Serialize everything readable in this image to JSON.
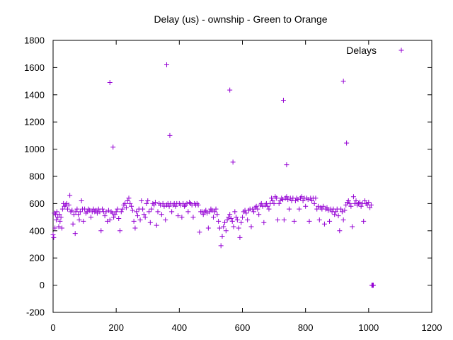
{
  "chart_data": {
    "type": "scatter",
    "title": "Delay (us) - ownship - Green to Orange",
    "xlabel": "",
    "ylabel": "",
    "xlim": [
      0,
      1200
    ],
    "ylim": [
      -200,
      1800
    ],
    "xticks": [
      0,
      200,
      400,
      600,
      800,
      1000,
      1200
    ],
    "yticks": [
      -200,
      0,
      200,
      400,
      600,
      800,
      1000,
      1200,
      1400,
      1600,
      1800
    ],
    "grid": false,
    "legend_position": "top-right",
    "marker": "plus",
    "series": [
      {
        "name": "Delays",
        "color": "#9400d3",
        "points": [
          [
            180,
            1490
          ],
          [
            190,
            1015
          ],
          [
            360,
            1620
          ],
          [
            370,
            1100
          ],
          [
            560,
            1435
          ],
          [
            570,
            905
          ],
          [
            730,
            1360
          ],
          [
            740,
            885
          ],
          [
            920,
            1500
          ],
          [
            930,
            1045
          ],
          [
            0,
            370
          ],
          [
            2,
            350
          ],
          [
            4,
            530
          ],
          [
            6,
            420
          ],
          [
            8,
            520
          ],
          [
            10,
            480
          ],
          [
            12,
            540
          ],
          [
            15,
            500
          ],
          [
            18,
            430
          ],
          [
            20,
            520
          ],
          [
            22,
            470
          ],
          [
            25,
            500
          ],
          [
            28,
            420
          ],
          [
            30,
            560
          ],
          [
            33,
            600
          ],
          [
            36,
            580
          ],
          [
            40,
            590
          ],
          [
            43,
            600
          ],
          [
            46,
            560
          ],
          [
            50,
            590
          ],
          [
            53,
            660
          ],
          [
            56,
            540
          ],
          [
            60,
            550
          ],
          [
            63,
            450
          ],
          [
            66,
            520
          ],
          [
            70,
            380
          ],
          [
            72,
            540
          ],
          [
            76,
            560
          ],
          [
            80,
            520
          ],
          [
            83,
            480
          ],
          [
            86,
            540
          ],
          [
            90,
            620
          ],
          [
            93,
            560
          ],
          [
            96,
            470
          ],
          [
            100,
            560
          ],
          [
            104,
            530
          ],
          [
            108,
            540
          ],
          [
            112,
            560
          ],
          [
            116,
            550
          ],
          [
            120,
            500
          ],
          [
            124,
            540
          ],
          [
            128,
            560
          ],
          [
            132,
            540
          ],
          [
            136,
            550
          ],
          [
            140,
            530
          ],
          [
            144,
            560
          ],
          [
            148,
            540
          ],
          [
            152,
            400
          ],
          [
            156,
            560
          ],
          [
            160,
            540
          ],
          [
            164,
            510
          ],
          [
            168,
            540
          ],
          [
            172,
            470
          ],
          [
            176,
            550
          ],
          [
            180,
            480
          ],
          [
            184,
            540
          ],
          [
            188,
            530
          ],
          [
            192,
            500
          ],
          [
            196,
            520
          ],
          [
            200,
            540
          ],
          [
            204,
            560
          ],
          [
            208,
            490
          ],
          [
            212,
            400
          ],
          [
            216,
            540
          ],
          [
            220,
            560
          ],
          [
            224,
            590
          ],
          [
            228,
            600
          ],
          [
            232,
            570
          ],
          [
            236,
            620
          ],
          [
            240,
            640
          ],
          [
            244,
            600
          ],
          [
            248,
            580
          ],
          [
            252,
            550
          ],
          [
            256,
            470
          ],
          [
            260,
            420
          ],
          [
            264,
            540
          ],
          [
            268,
            510
          ],
          [
            272,
            560
          ],
          [
            276,
            480
          ],
          [
            280,
            620
          ],
          [
            284,
            560
          ],
          [
            288,
            520
          ],
          [
            292,
            500
          ],
          [
            296,
            600
          ],
          [
            300,
            620
          ],
          [
            304,
            540
          ],
          [
            308,
            460
          ],
          [
            312,
            560
          ],
          [
            316,
            600
          ],
          [
            320,
            590
          ],
          [
            324,
            610
          ],
          [
            328,
            440
          ],
          [
            332,
            540
          ],
          [
            336,
            600
          ],
          [
            340,
            590
          ],
          [
            344,
            520
          ],
          [
            348,
            600
          ],
          [
            352,
            580
          ],
          [
            356,
            480
          ],
          [
            360,
            590
          ],
          [
            364,
            600
          ],
          [
            368,
            580
          ],
          [
            372,
            600
          ],
          [
            376,
            540
          ],
          [
            380,
            590
          ],
          [
            384,
            600
          ],
          [
            388,
            580
          ],
          [
            392,
            600
          ],
          [
            396,
            510
          ],
          [
            400,
            600
          ],
          [
            404,
            590
          ],
          [
            408,
            500
          ],
          [
            412,
            600
          ],
          [
            416,
            580
          ],
          [
            420,
            590
          ],
          [
            424,
            600
          ],
          [
            428,
            540
          ],
          [
            432,
            610
          ],
          [
            436,
            600
          ],
          [
            440,
            590
          ],
          [
            444,
            500
          ],
          [
            448,
            600
          ],
          [
            452,
            590
          ],
          [
            456,
            600
          ],
          [
            460,
            590
          ],
          [
            464,
            390
          ],
          [
            468,
            540
          ],
          [
            472,
            540
          ],
          [
            476,
            520
          ],
          [
            480,
            540
          ],
          [
            484,
            550
          ],
          [
            488,
            530
          ],
          [
            492,
            420
          ],
          [
            496,
            540
          ],
          [
            500,
            560
          ],
          [
            504,
            550
          ],
          [
            508,
            500
          ],
          [
            512,
            540
          ],
          [
            516,
            560
          ],
          [
            520,
            520
          ],
          [
            524,
            470
          ],
          [
            528,
            420
          ],
          [
            532,
            290
          ],
          [
            536,
            360
          ],
          [
            540,
            430
          ],
          [
            544,
            460
          ],
          [
            548,
            400
          ],
          [
            552,
            480
          ],
          [
            556,
            500
          ],
          [
            560,
            520
          ],
          [
            564,
            490
          ],
          [
            568,
            470
          ],
          [
            572,
            430
          ],
          [
            576,
            540
          ],
          [
            580,
            500
          ],
          [
            584,
            480
          ],
          [
            588,
            420
          ],
          [
            592,
            350
          ],
          [
            596,
            460
          ],
          [
            600,
            500
          ],
          [
            604,
            540
          ],
          [
            608,
            550
          ],
          [
            612,
            530
          ],
          [
            616,
            480
          ],
          [
            620,
            550
          ],
          [
            624,
            560
          ],
          [
            628,
            430
          ],
          [
            632,
            560
          ],
          [
            636,
            540
          ],
          [
            640,
            570
          ],
          [
            644,
            580
          ],
          [
            648,
            560
          ],
          [
            652,
            520
          ],
          [
            656,
            590
          ],
          [
            660,
            600
          ],
          [
            664,
            580
          ],
          [
            668,
            460
          ],
          [
            672,
            590
          ],
          [
            676,
            600
          ],
          [
            680,
            580
          ],
          [
            684,
            560
          ],
          [
            688,
            600
          ],
          [
            692,
            640
          ],
          [
            696,
            620
          ],
          [
            700,
            600
          ],
          [
            704,
            650
          ],
          [
            708,
            640
          ],
          [
            712,
            480
          ],
          [
            716,
            600
          ],
          [
            720,
            620
          ],
          [
            724,
            640
          ],
          [
            728,
            630
          ],
          [
            732,
            480
          ],
          [
            736,
            640
          ],
          [
            740,
            650
          ],
          [
            744,
            630
          ],
          [
            748,
            560
          ],
          [
            752,
            640
          ],
          [
            756,
            620
          ],
          [
            760,
            640
          ],
          [
            764,
            470
          ],
          [
            768,
            620
          ],
          [
            772,
            640
          ],
          [
            776,
            630
          ],
          [
            780,
            560
          ],
          [
            784,
            640
          ],
          [
            788,
            650
          ],
          [
            792,
            620
          ],
          [
            796,
            640
          ],
          [
            800,
            580
          ],
          [
            804,
            640
          ],
          [
            808,
            630
          ],
          [
            812,
            470
          ],
          [
            816,
            640
          ],
          [
            820,
            620
          ],
          [
            824,
            640
          ],
          [
            828,
            600
          ],
          [
            832,
            640
          ],
          [
            836,
            560
          ],
          [
            840,
            580
          ],
          [
            844,
            480
          ],
          [
            848,
            570
          ],
          [
            852,
            560
          ],
          [
            856,
            580
          ],
          [
            860,
            450
          ],
          [
            864,
            560
          ],
          [
            868,
            570
          ],
          [
            872,
            550
          ],
          [
            876,
            470
          ],
          [
            880,
            560
          ],
          [
            884,
            540
          ],
          [
            888,
            560
          ],
          [
            892,
            520
          ],
          [
            896,
            540
          ],
          [
            900,
            560
          ],
          [
            904,
            510
          ],
          [
            908,
            400
          ],
          [
            912,
            560
          ],
          [
            916,
            540
          ],
          [
            920,
            480
          ],
          [
            924,
            550
          ],
          [
            928,
            590
          ],
          [
            932,
            610
          ],
          [
            936,
            620
          ],
          [
            940,
            600
          ],
          [
            944,
            580
          ],
          [
            948,
            430
          ],
          [
            952,
            650
          ],
          [
            956,
            600
          ],
          [
            960,
            620
          ],
          [
            964,
            590
          ],
          [
            968,
            600
          ],
          [
            972,
            610
          ],
          [
            976,
            580
          ],
          [
            980,
            600
          ],
          [
            984,
            470
          ],
          [
            988,
            620
          ],
          [
            992,
            600
          ],
          [
            996,
            590
          ],
          [
            1000,
            610
          ],
          [
            1004,
            570
          ],
          [
            1008,
            590
          ],
          [
            1010,
            0
          ],
          [
            1012,
            0
          ],
          [
            1013,
            0
          ],
          [
            1014,
            0
          ],
          [
            1015,
            0
          ]
        ]
      }
    ]
  }
}
